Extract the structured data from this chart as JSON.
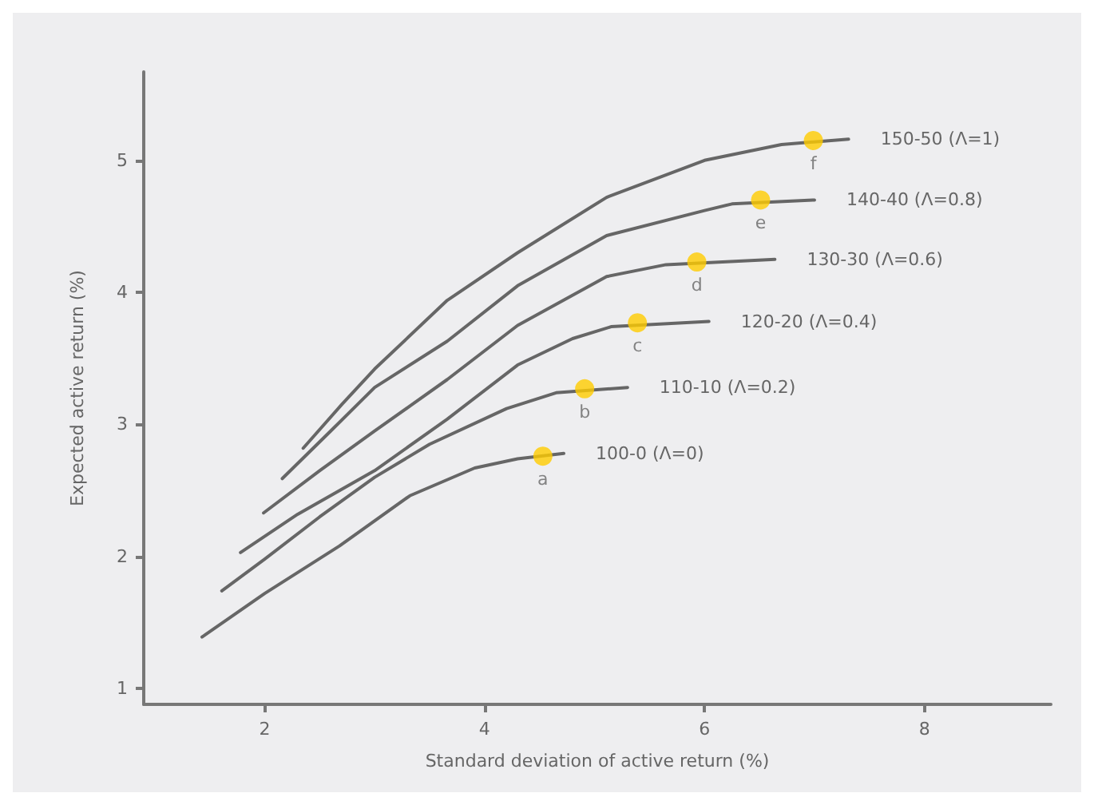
{
  "chart_data": {
    "type": "line",
    "xlabel": "Standard deviation of active return (%)",
    "ylabel": "Expected active return (%)",
    "xlim": [
      0.9,
      9.15
    ],
    "ylim": [
      0.88,
      5.67
    ],
    "xticks": [
      2,
      4,
      6,
      8
    ],
    "yticks": [
      1,
      2,
      3,
      4,
      5
    ],
    "grid": false,
    "legend": false,
    "marker": "none",
    "line_style": "solid",
    "series": [
      {
        "name": "100-0 (Λ=0)",
        "color": "#666666",
        "x": [
          1.43,
          2.0,
          2.68,
          3.32,
          3.91,
          4.3,
          4.72
        ],
        "values": [
          1.39,
          1.72,
          2.08,
          2.46,
          2.67,
          2.74,
          2.78
        ]
      },
      {
        "name": "110-10 (Λ=0.2)",
        "color": "#666666",
        "x": [
          1.61,
          2.0,
          2.5,
          3.0,
          3.5,
          4.2,
          4.65,
          5.3
        ],
        "values": [
          1.74,
          1.98,
          2.3,
          2.6,
          2.85,
          3.12,
          3.24,
          3.28
        ]
      },
      {
        "name": "120-20 (Λ=0.4)",
        "color": "#666666",
        "x": [
          1.78,
          2.3,
          3.0,
          3.66,
          4.3,
          4.8,
          5.15,
          6.04
        ],
        "values": [
          2.03,
          2.32,
          2.65,
          3.04,
          3.45,
          3.65,
          3.74,
          3.78
        ]
      },
      {
        "name": "130-30 (Λ=0.6)",
        "color": "#666666",
        "x": [
          1.99,
          2.5,
          3.0,
          3.66,
          4.3,
          5.11,
          5.65,
          6.64
        ],
        "values": [
          2.33,
          2.65,
          2.95,
          3.34,
          3.75,
          4.12,
          4.21,
          4.25
        ]
      },
      {
        "name": "140-40 (Λ=0.8)",
        "color": "#666666",
        "x": [
          2.16,
          2.6,
          3.0,
          3.66,
          4.3,
          5.11,
          6.0,
          6.25,
          7.0
        ],
        "values": [
          2.59,
          2.95,
          3.28,
          3.63,
          4.05,
          4.43,
          4.62,
          4.67,
          4.7
        ]
      },
      {
        "name": "150-50 (Λ=1)",
        "color": "#666666",
        "x": [
          2.35,
          2.7,
          3.0,
          3.66,
          4.3,
          5.11,
          6.0,
          6.7,
          7.31
        ],
        "values": [
          2.82,
          3.15,
          3.42,
          3.94,
          4.3,
          4.72,
          5.0,
          5.12,
          5.16
        ]
      },
      {
        "type": "scatter",
        "color": "#ffcc00",
        "marker": "circle",
        "x": [
          4.53,
          4.91,
          5.39,
          5.93,
          6.51,
          6.99
        ],
        "values": [
          2.76,
          3.27,
          3.77,
          4.23,
          4.7,
          5.15
        ],
        "value_labels": [
          "a",
          "b",
          "c",
          "d",
          "e",
          "f"
        ]
      }
    ]
  }
}
